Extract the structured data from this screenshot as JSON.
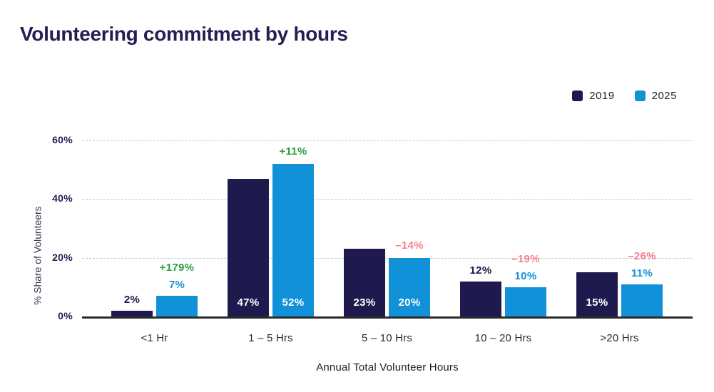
{
  "title": "Volunteering commitment by hours",
  "legend": [
    {
      "label": "2019",
      "color": "#1e1a4e"
    },
    {
      "label": "2025",
      "color": "#1191d8"
    }
  ],
  "chart_data": {
    "type": "bar",
    "title": "Volunteering commitment by hours",
    "categories": [
      "<1 Hr",
      "1 – 5 Hrs",
      "5 – 10 Hrs",
      "10 – 20 Hrs",
      ">20 Hrs"
    ],
    "series": [
      {
        "name": "2019",
        "color": "#1e1a4e",
        "values": [
          2,
          47,
          23,
          12,
          15
        ],
        "labels": [
          "2%",
          "47%",
          "23%",
          "12%",
          "15%"
        ]
      },
      {
        "name": "2025",
        "color": "#1191d8",
        "values": [
          7,
          52,
          20,
          10,
          11
        ],
        "labels": [
          "7%",
          "52%",
          "20%",
          "10%",
          "11%"
        ]
      }
    ],
    "change_labels": [
      {
        "text": "+179%",
        "direction": "up"
      },
      {
        "text": "+11%",
        "direction": "up"
      },
      {
        "text": "–14%",
        "direction": "down"
      },
      {
        "text": "–19%",
        "direction": "down"
      },
      {
        "text": "–26%",
        "direction": "down"
      }
    ],
    "positive_color": "#2e9e44",
    "negative_color": "#f67e8e",
    "xlabel": "Annual Total Volunteer Hours",
    "ylabel": "% Share of Volunteers",
    "yticks": [
      "0%",
      "20%",
      "40%",
      "60%"
    ],
    "ylim": [
      0,
      60
    ],
    "grid": "dashed horizontal gridlines at 20%, 40%, 60%",
    "legend_position": "top-right"
  }
}
